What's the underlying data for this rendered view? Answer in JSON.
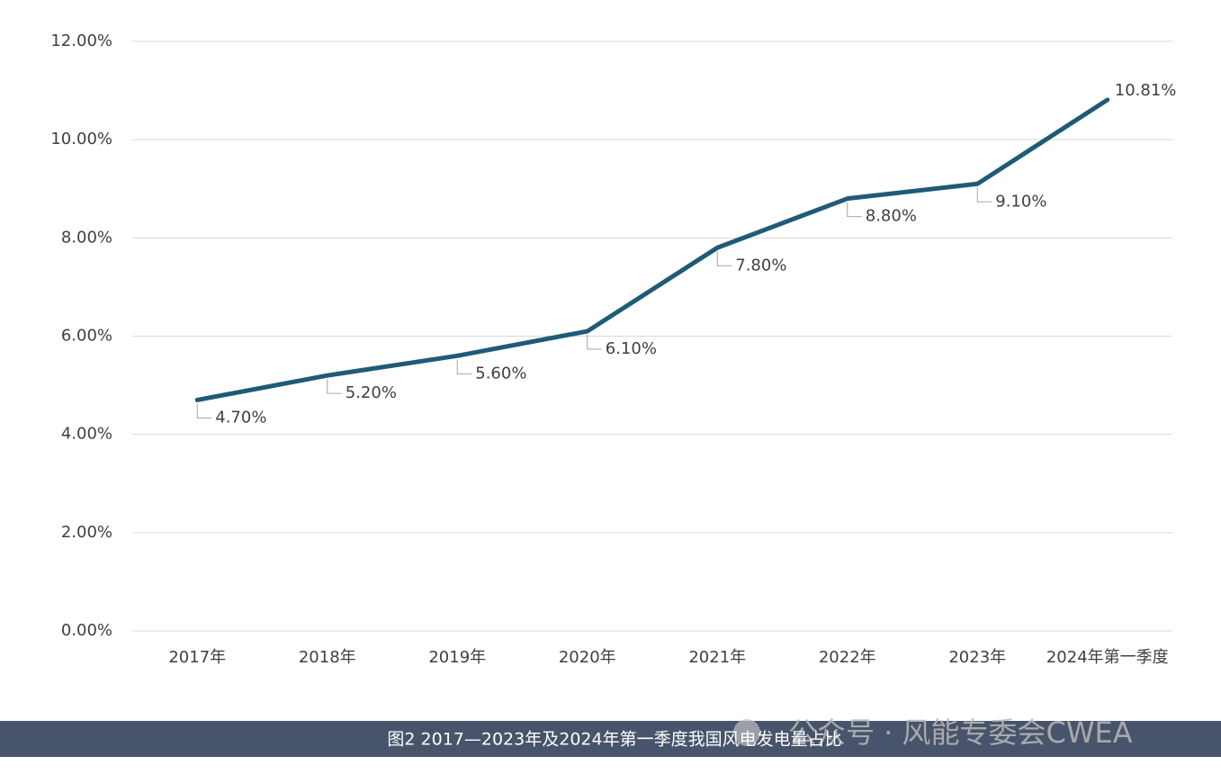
{
  "chart_data": {
    "type": "line",
    "categories": [
      "2017年",
      "2018年",
      "2019年",
      "2020年",
      "2021年",
      "2022年",
      "2023年",
      "2024年第一季度"
    ],
    "values": [
      4.7,
      5.2,
      5.6,
      6.1,
      7.8,
      8.8,
      9.1,
      10.81
    ],
    "value_labels": [
      "4.70%",
      "5.20%",
      "5.60%",
      "6.10%",
      "7.80%",
      "8.80%",
      "9.10%",
      "10.81%"
    ],
    "color": "#1f5a78",
    "ylim": [
      0,
      12
    ],
    "yticks": [
      {
        "value": 0,
        "label": "0.00%"
      },
      {
        "value": 2,
        "label": "2.00%"
      },
      {
        "value": 4,
        "label": "4.00%"
      },
      {
        "value": 6,
        "label": "6.00%"
      },
      {
        "value": 8,
        "label": "8.00%"
      },
      {
        "value": 10,
        "label": "10.00%"
      },
      {
        "value": 12,
        "label": "12.00%"
      }
    ],
    "grid": true,
    "caption": "图2 2017—2023年及2024年第一季度我国风电发电量占比",
    "watermark": "公众号 · 风能专委会CWEA"
  }
}
